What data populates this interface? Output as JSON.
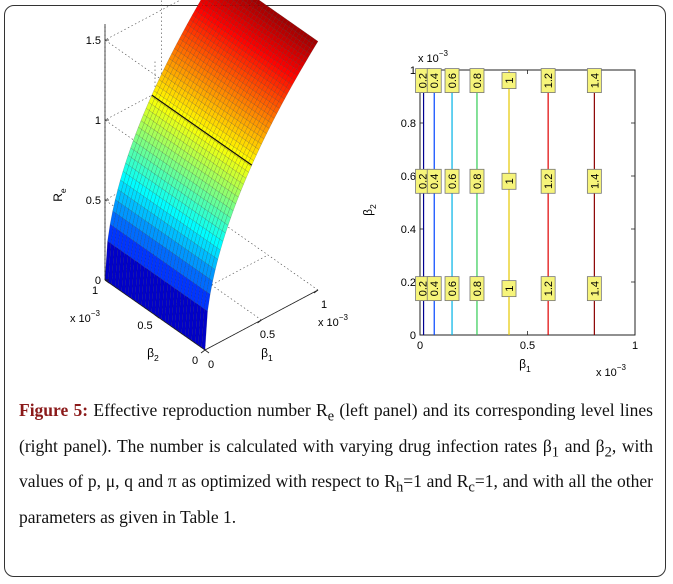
{
  "chart_data": [
    {
      "type": "surface",
      "zlabel": "R",
      "zlabel_sub": "e",
      "xlabel": "β",
      "xlabel_sub": "1",
      "ylabel": "β",
      "ylabel_sub": "2",
      "x_ticks": [
        "0",
        "0.5",
        "1"
      ],
      "x_exponent": "x 10",
      "x_exponent_power": "−3",
      "y_ticks": [
        "0",
        "0.5",
        "1"
      ],
      "y_exponent": "x 10",
      "y_exponent_power": "−3",
      "z_ticks": [
        "0",
        "0.5",
        "1",
        "1.5"
      ],
      "xlim": [
        0,
        0.001
      ],
      "ylim": [
        0,
        0.001
      ],
      "zlim": [
        0,
        1.6
      ],
      "surface_note": "Re depends on β1 only (~sqrt(β1 / 0.000414)); constant along β2",
      "sample": {
        "x": [
          0,
          0.0001,
          0.0002,
          0.0003,
          0.0004,
          0.0005,
          0.0006,
          0.0007,
          0.0008,
          0.0009,
          0.001
        ],
        "z": [
          0,
          0.49,
          0.7,
          0.85,
          0.98,
          1.1,
          1.2,
          1.3,
          1.39,
          1.47,
          1.55
        ]
      },
      "colormap": "jet",
      "grid": true
    },
    {
      "type": "contour",
      "xlabel": "β",
      "xlabel_sub": "1",
      "ylabel": "β",
      "ylabel_sub": "2",
      "x_ticks": [
        "0",
        "0.5",
        "1"
      ],
      "x_exponent": "x 10",
      "x_exponent_power": "−3",
      "y_ticks": [
        "0",
        "0.2",
        "0.4",
        "0.6",
        "0.8",
        "1"
      ],
      "y_exponent": "x 10",
      "y_exponent_power": "−3",
      "xlim": [
        0,
        0.001
      ],
      "ylim": [
        0,
        0.001
      ],
      "levels": [
        {
          "value": 0.2,
          "label": "0.2",
          "x": 1.66e-05,
          "color": "#00008f"
        },
        {
          "value": 0.4,
          "label": "0.4",
          "x": 6.62e-05,
          "color": "#0044ff"
        },
        {
          "value": 0.6,
          "label": "0.6",
          "x": 0.000149,
          "color": "#00b3e6"
        },
        {
          "value": 0.8,
          "label": "0.8",
          "x": 0.000265,
          "color": "#33cc55"
        },
        {
          "value": 1.0,
          "label": "1",
          "x": 0.000414,
          "color": "#e6c800"
        },
        {
          "value": 1.2,
          "label": "1.2",
          "x": 0.000596,
          "color": "#e00000"
        },
        {
          "value": 1.4,
          "label": "1.4",
          "x": 0.000811,
          "color": "#8b0000"
        }
      ],
      "label_rows_y": [
        0.00096,
        0.00058,
        0.000175
      ]
    }
  ],
  "caption": {
    "label": "Figure 5:",
    "text_parts": [
      " Effective reproduction number R",
      "e",
      " (left panel) and its corresponding level lines (right panel). The number is calculated with varying drug infection rates β",
      "1",
      " and β",
      "2",
      ", with values of p, μ, q and π as optimized with respect to R",
      "h",
      "=1 and R",
      "c",
      "=1, and with all the other parameters as given in Table 1."
    ]
  }
}
